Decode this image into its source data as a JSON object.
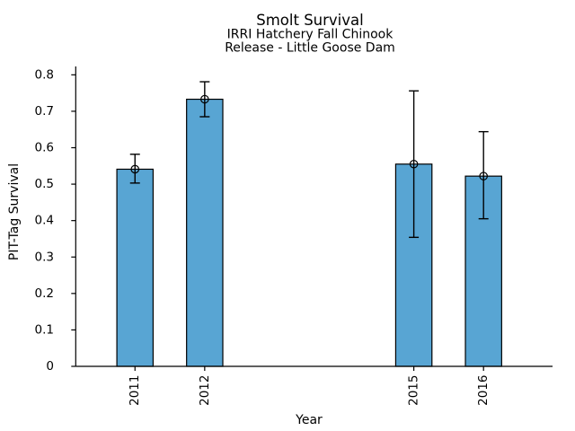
{
  "chart_data": {
    "type": "bar",
    "title": "Smolt Survival",
    "subtitle_lines": [
      "IRRI Hatchery Fall Chinook",
      "Release - Little Goose Dam"
    ],
    "xlabel": "Year",
    "ylabel": "PIT-Tag Survival",
    "categories": [
      "2011",
      "2012",
      "2015",
      "2016"
    ],
    "x_positions": [
      2011,
      2012,
      2015,
      2016
    ],
    "series": [
      {
        "name": "PIT-Tag Survival",
        "values": [
          0.541,
          0.733,
          0.555,
          0.522
        ],
        "error_low": [
          0.503,
          0.685,
          0.354,
          0.405
        ],
        "error_high": [
          0.582,
          0.781,
          0.756,
          0.644
        ]
      }
    ],
    "xlim": [
      2010.15,
      2016.99
    ],
    "ylim": [
      0,
      0.823
    ],
    "yticks": [
      0,
      0.1,
      0.2,
      0.3,
      0.4,
      0.5,
      0.6,
      0.7,
      0.8
    ],
    "ytick_labels": [
      "0",
      "0.1",
      "0.2",
      "0.3",
      "0.4",
      "0.5",
      "0.6",
      "0.7",
      "0.8"
    ],
    "grid": false,
    "legend": null,
    "marker": "open-circle",
    "bar_width_years": 0.52,
    "colors": {
      "bar_fill": "#58A5D3",
      "bar_edge": "#000000",
      "error": "#000000",
      "axis": "#000000",
      "text": "#000000",
      "background": "#FFFFFF"
    }
  }
}
